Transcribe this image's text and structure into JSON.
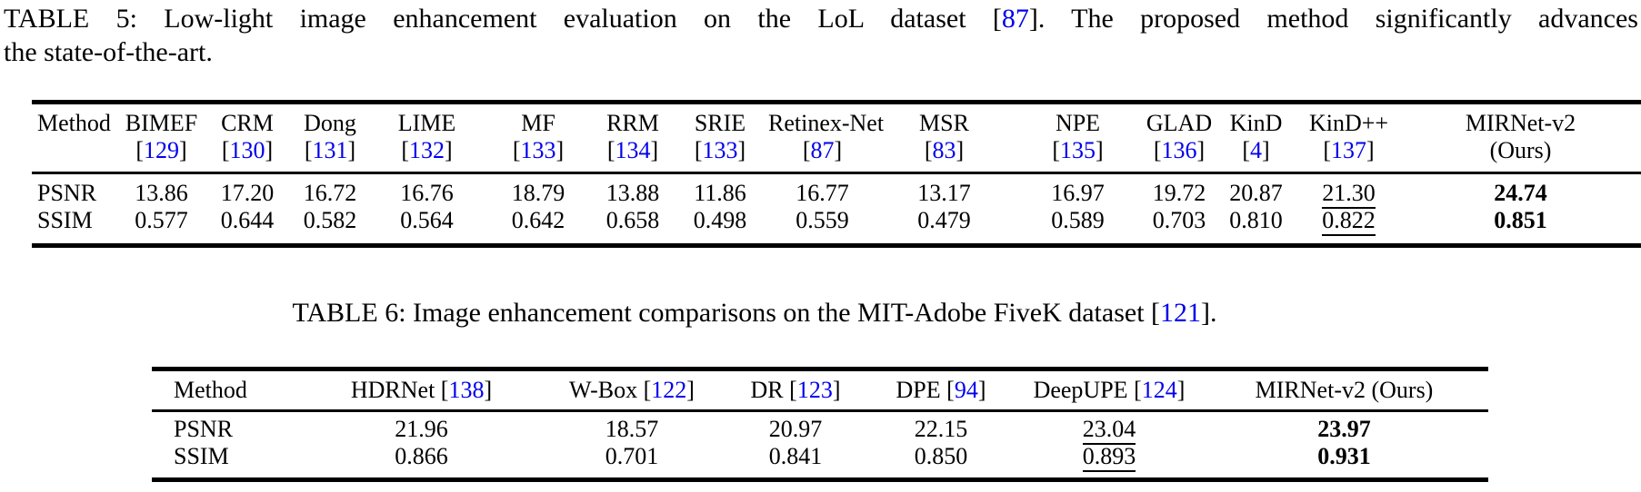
{
  "page": {
    "background": "#ffffff",
    "text_color": "#000000",
    "citation_color": "#0000ee"
  },
  "caption_table5": {
    "line1_parts": [
      {
        "t": "TABLE 5: Low-light image enhancement evaluation on the LoL dataset ["
      },
      {
        "t": "87",
        "cite": true
      },
      {
        "t": "]. The proposed method significantly advances"
      }
    ],
    "line2": "the state-of-the-art."
  },
  "caption_table6": {
    "parts": [
      {
        "t": "TABLE 6: Image enhancement comparisons on the MIT-Adobe FiveK dataset ["
      },
      {
        "t": "121",
        "cite": true
      },
      {
        "t": "]."
      }
    ]
  },
  "table5": {
    "title": "Low-light image enhancement evaluation on the LoL dataset",
    "columns": [
      {
        "label": "Method"
      },
      {
        "label": "BIMEF",
        "cite": "129"
      },
      {
        "label": "CRM",
        "cite": "130"
      },
      {
        "label": "Dong",
        "cite": "131"
      },
      {
        "label": "LIME",
        "cite": "132"
      },
      {
        "label": "MF",
        "cite": "133"
      },
      {
        "label": "RRM",
        "cite": "134"
      },
      {
        "label": "SRIE",
        "cite": "133"
      },
      {
        "label": "Retinex-Net",
        "cite": "87"
      },
      {
        "label": "MSR",
        "cite": "83"
      },
      {
        "label": "NPE",
        "cite": "135"
      },
      {
        "label": "GLAD",
        "cite": "136"
      },
      {
        "label": "KinD",
        "cite": "4"
      },
      {
        "label": "KinD++",
        "cite": "137"
      },
      {
        "label": "MIRNet-v2",
        "sub": "(Ours)"
      }
    ],
    "rows": [
      {
        "label": "PSNR",
        "values": [
          "13.86",
          "17.20",
          "16.72",
          "16.76",
          "18.79",
          "13.88",
          "11.86",
          "16.77",
          "13.17",
          "16.97",
          "19.72",
          "20.87",
          {
            "v": "21.30",
            "u": 1
          },
          {
            "v": "24.74",
            "b": 1
          }
        ]
      },
      {
        "label": "SSIM",
        "values": [
          "0.577",
          "0.644",
          "0.582",
          "0.564",
          "0.642",
          "0.658",
          "0.498",
          "0.559",
          "0.479",
          "0.589",
          "0.703",
          "0.810",
          {
            "v": "0.822",
            "u": 1
          },
          {
            "v": "0.851",
            "b": 1
          }
        ]
      }
    ]
  },
  "table6": {
    "title": "Image enhancement comparisons on the MIT-Adobe FiveK dataset",
    "columns": [
      {
        "label": "Method"
      },
      {
        "label": "HDRNet",
        "cite": "138"
      },
      {
        "label": "W-Box",
        "cite": "122"
      },
      {
        "label": "DR",
        "cite": "123"
      },
      {
        "label": "DPE",
        "cite": "94"
      },
      {
        "label": "DeepUPE",
        "cite": "124"
      },
      {
        "label": "MIRNet-v2 (Ours)"
      }
    ],
    "rows": [
      {
        "label": "PSNR",
        "values": [
          "21.96",
          "18.57",
          "20.97",
          "22.15",
          {
            "v": "23.04",
            "u": 1
          },
          {
            "v": "23.97",
            "b": 1
          }
        ]
      },
      {
        "label": "SSIM",
        "values": [
          "0.866",
          "0.701",
          "0.841",
          "0.850",
          {
            "v": "0.893",
            "u": 1
          },
          {
            "v": "0.931",
            "b": 1
          }
        ]
      }
    ]
  }
}
